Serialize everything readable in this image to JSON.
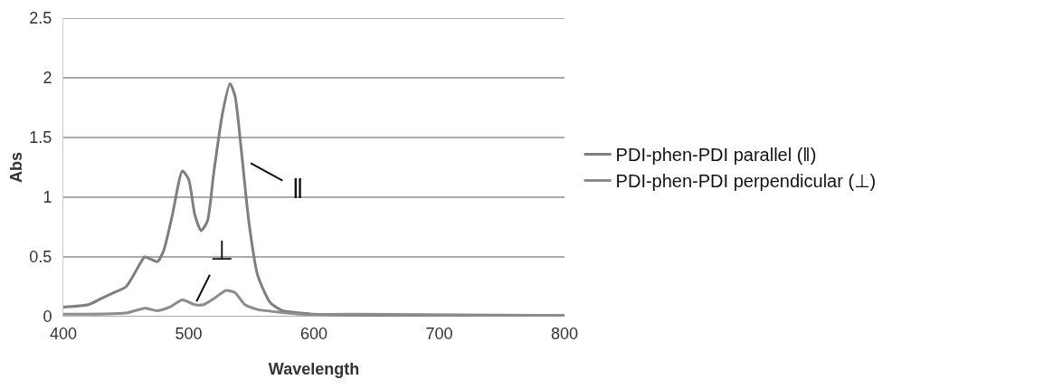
{
  "chart_data": {
    "type": "line",
    "xlabel": "Wavelength",
    "ylabel": "Abs",
    "xlim": [
      400,
      800
    ],
    "xticks": [
      400,
      500,
      600,
      700,
      800
    ],
    "ylim": [
      0,
      2.5
    ],
    "yticks": [
      0,
      0.5,
      1,
      1.5,
      2,
      2.5
    ],
    "grid": "y",
    "legend": "right",
    "marker": "none",
    "line_style": "solid",
    "series": [
      {
        "name": "PDI-phen-PDI parallel (‖)",
        "color": "#7f7f7f",
        "x": [
          400,
          420,
          430,
          440,
          450,
          460,
          465,
          470,
          475,
          480,
          487,
          495,
          500,
          505,
          510,
          515,
          520,
          527,
          533,
          537,
          542,
          548,
          555,
          565,
          575,
          590,
          600,
          650,
          700,
          800
        ],
        "values": [
          0.08,
          0.1,
          0.15,
          0.2,
          0.25,
          0.42,
          0.5,
          0.48,
          0.46,
          0.55,
          0.85,
          1.22,
          1.15,
          0.85,
          0.72,
          0.8,
          1.2,
          1.7,
          1.95,
          1.85,
          1.4,
          0.8,
          0.35,
          0.12,
          0.05,
          0.03,
          0.02,
          0.01,
          0.01,
          0.01
        ]
      },
      {
        "name": "PDI-phen-PDI perpendicular (⊥)",
        "color": "#8c8c8c",
        "x": [
          400,
          450,
          465,
          475,
          485,
          495,
          505,
          512,
          520,
          530,
          537,
          545,
          555,
          570,
          590,
          630,
          800
        ],
        "values": [
          0.02,
          0.03,
          0.07,
          0.05,
          0.08,
          0.14,
          0.1,
          0.1,
          0.15,
          0.22,
          0.2,
          0.1,
          0.06,
          0.04,
          0.02,
          0.02,
          0.01
        ]
      }
    ],
    "annotations": [
      {
        "text": "‖",
        "x": 547,
        "y": 1.3
      },
      {
        "text": "⊥",
        "x": 505,
        "y": 0.1
      }
    ]
  }
}
